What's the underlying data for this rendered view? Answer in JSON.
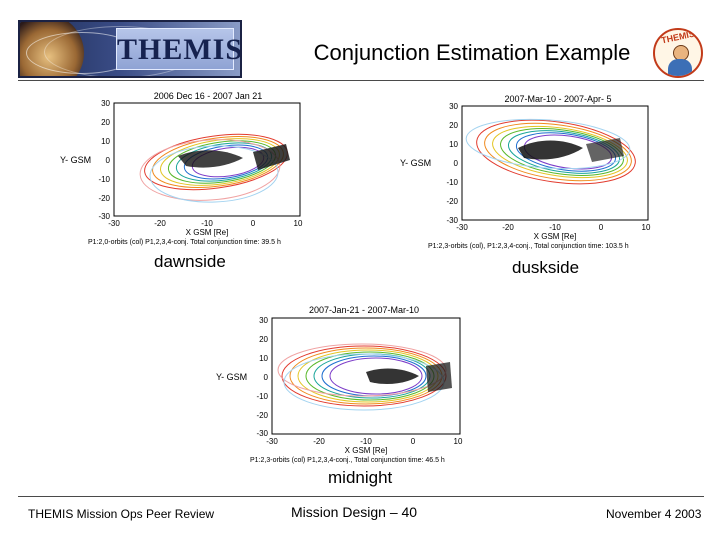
{
  "header": {
    "logo_text": "THEMIS",
    "title": "Conjunction Estimation Example",
    "mascot_text": "THEMIS"
  },
  "panels": [
    {
      "name": "dawnside",
      "date_range": "2006 Dec 16 - 2007 Jan 21",
      "y_label": "Y- GSM",
      "x_label": "X GSM [Re]",
      "x_ticks": [
        "-30",
        "-20",
        "-10",
        "0",
        "10"
      ],
      "y_ticks": [
        "30",
        "20",
        "10",
        "0",
        "-10",
        "-20",
        "-30"
      ],
      "note": "P1:2,0-orbits (col) P1,2,3,4-conj. Total conjunction time: 39.5 h",
      "caption": "dawnside"
    },
    {
      "name": "duskside",
      "date_range": "2007-Mar-10 - 2007-Apr- 5",
      "y_label": "Y- GSM",
      "x_label": "X GSM [Re]",
      "x_ticks": [
        "-30",
        "-20",
        "-10",
        "0",
        "10"
      ],
      "y_ticks": [
        "30",
        "20",
        "10",
        "0",
        "-10",
        "-20",
        "-30"
      ],
      "note": "P1:2,3-orbits (col), P1:2,3,4-conj., Total conjunction time: 103.5 h",
      "caption": "duskside"
    },
    {
      "name": "midnight",
      "date_range": "2007-Jan-21 - 2007-Mar-10",
      "y_label": "Y- GSM",
      "x_label": "X GSM [Re]",
      "x_ticks": [
        "-30",
        "-20",
        "-10",
        "0",
        "10"
      ],
      "y_ticks": [
        "30",
        "20",
        "10",
        "0",
        "-10",
        "-20",
        "-30"
      ],
      "note": "P1:2,3-orbits (col) P1,2,3,4-conj., Total conjunction time: 46.5 h",
      "caption": "midnight"
    }
  ],
  "footer": {
    "left": "THEMIS Mission Ops Peer Review",
    "center": "Mission Design – 40",
    "right": "November 4 2003"
  }
}
